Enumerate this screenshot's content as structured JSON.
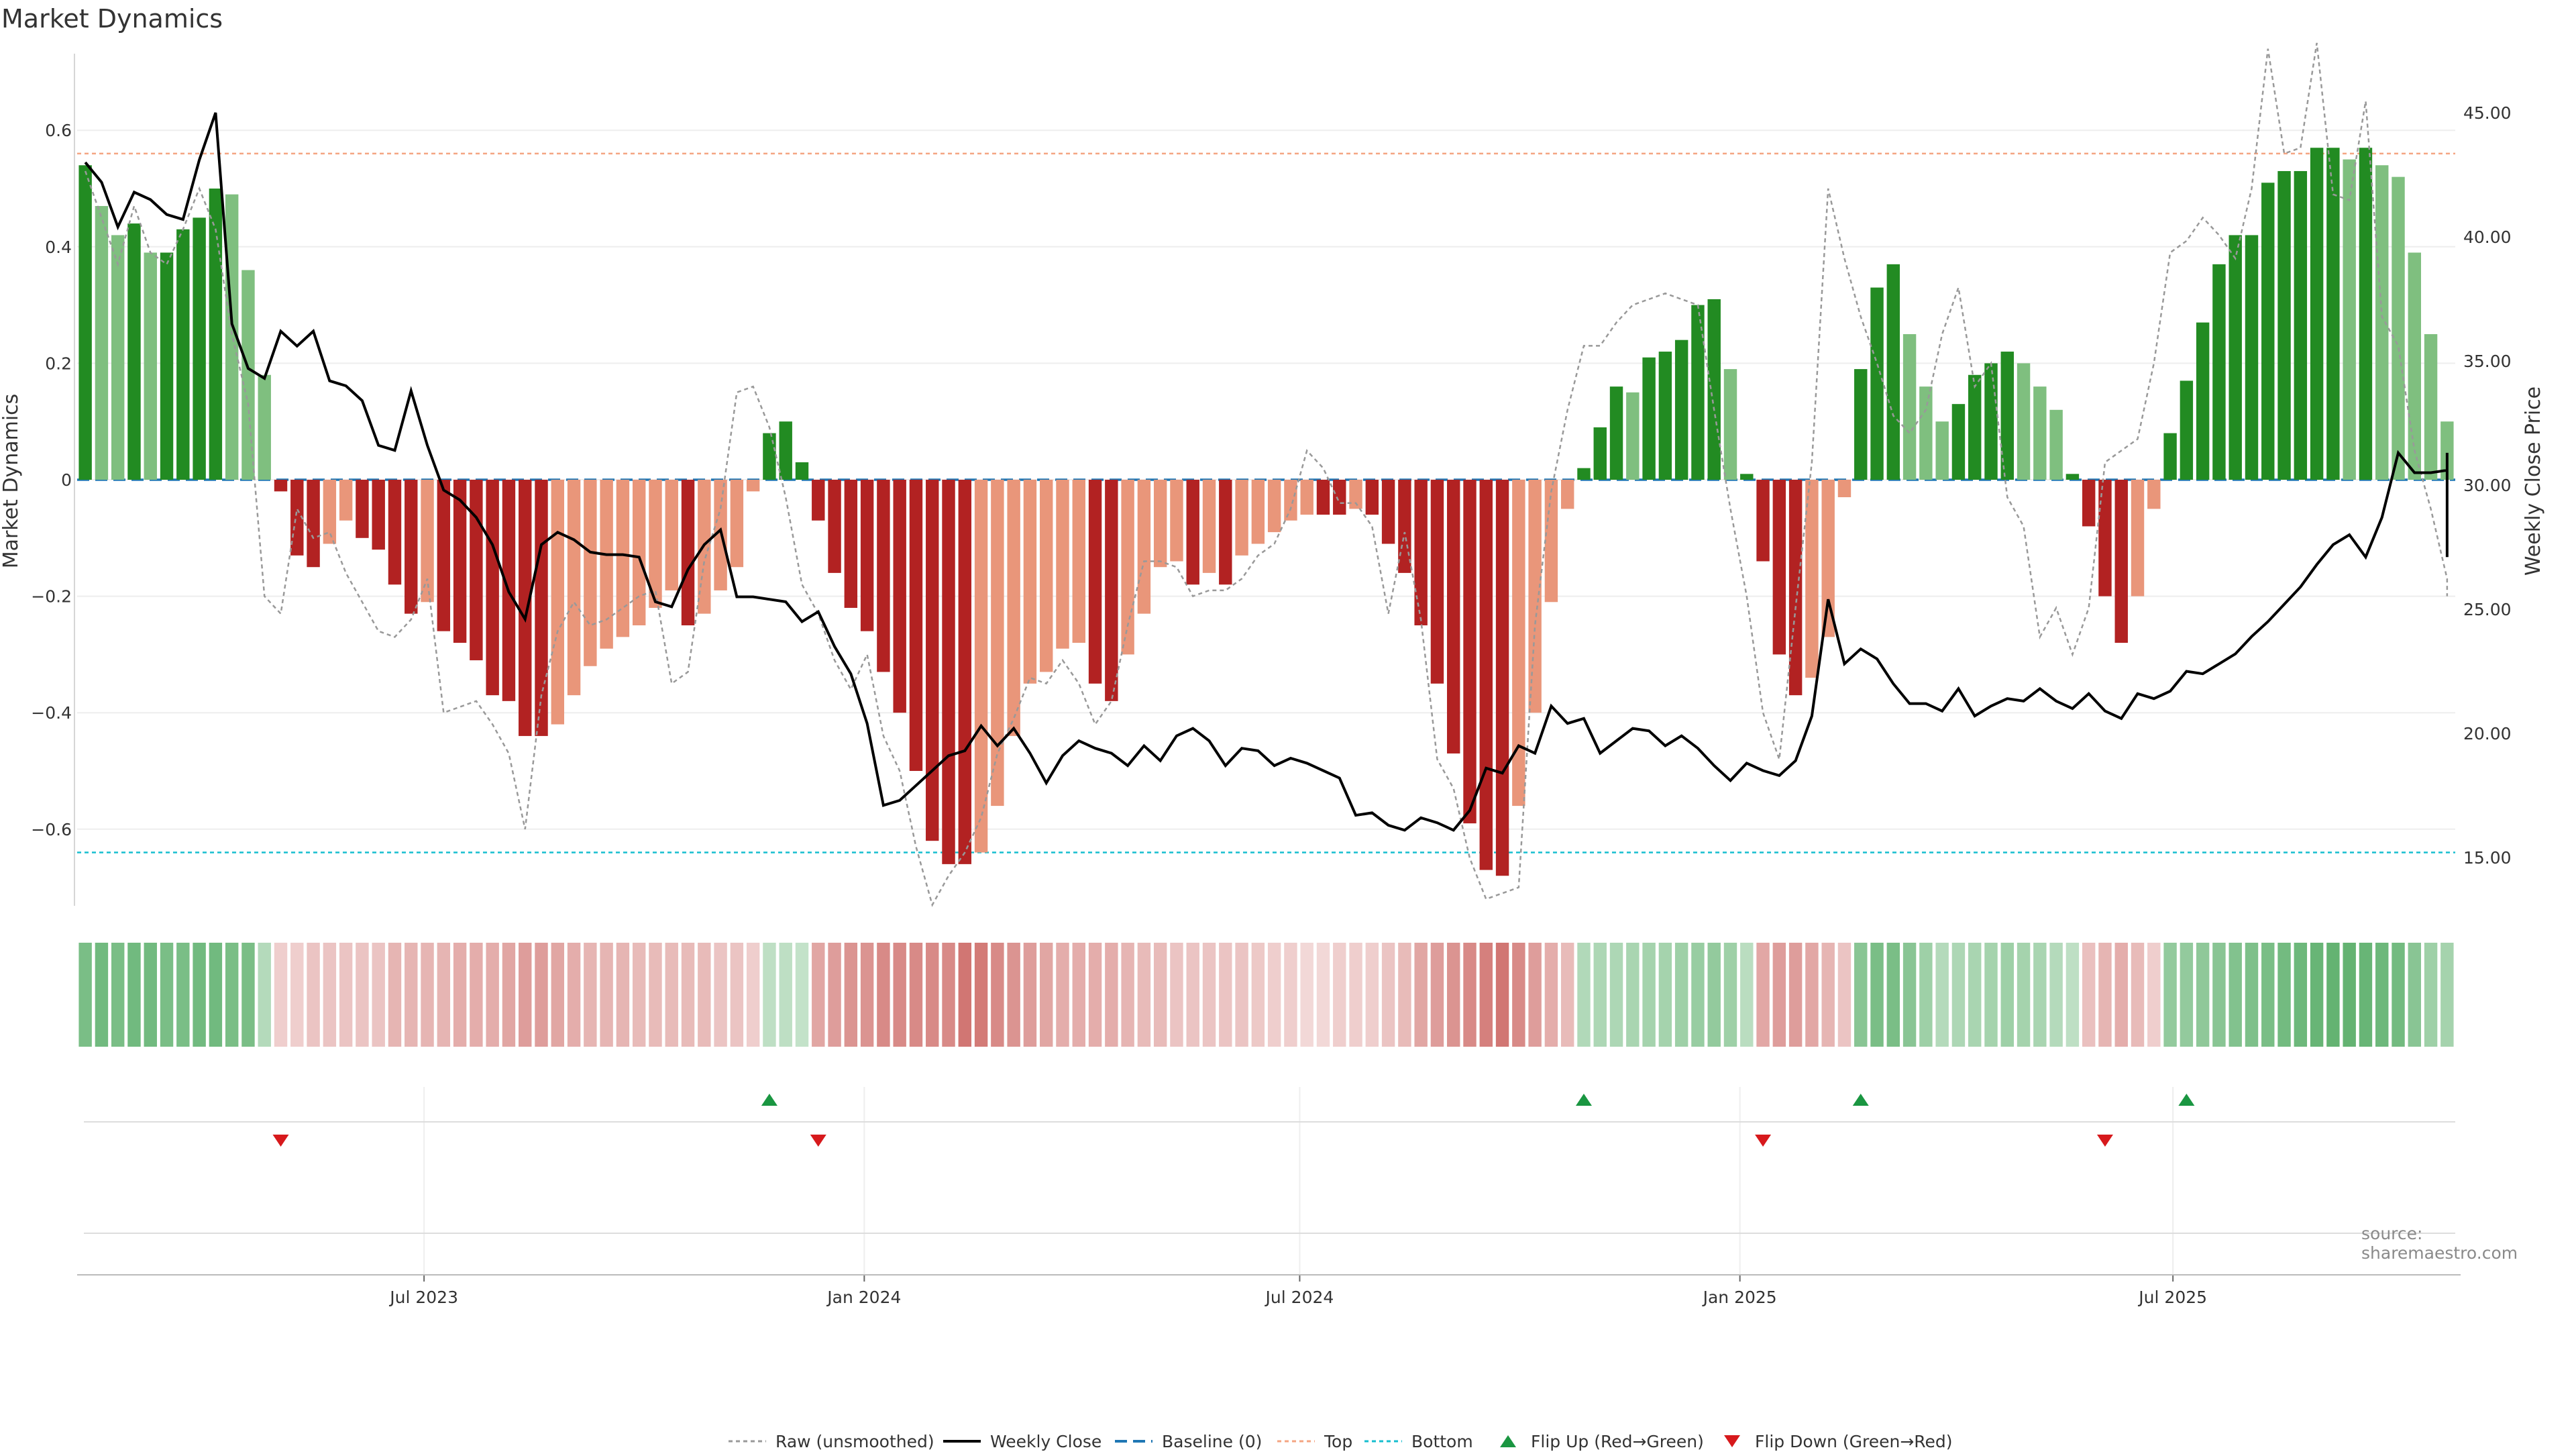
{
  "title": "Market Dynamics",
  "source": "source: sharemaestro.com",
  "colors": {
    "green_strong": "#228b22",
    "green_light": "#7fbf7f",
    "red_strong": "#b22222",
    "red_light": "#e9967a",
    "top_line": "#f4a582",
    "bottom_line": "#17becf",
    "baseline": "#1f77b4",
    "close_line": "#000000",
    "raw_line": "#999999",
    "flip_up": "#1a9641",
    "flip_down": "#d7191c"
  },
  "legend": [
    {
      "label": "Raw (unsmoothed)",
      "icon": "raw-line-icon"
    },
    {
      "label": "Weekly Close",
      "icon": "close-line-icon"
    },
    {
      "label": "Baseline (0)",
      "icon": "baseline-line-icon"
    },
    {
      "label": "Top",
      "icon": "top-line-icon"
    },
    {
      "label": "Bottom",
      "icon": "bottom-line-icon"
    },
    {
      "label": "Flip Up (Red→Green)",
      "icon": "triangle-up-icon"
    },
    {
      "label": "Flip Down (Green→Red)",
      "icon": "triangle-down-icon"
    }
  ],
  "chart_data": {
    "type": "bar",
    "title": "Market Dynamics",
    "ylabel": "Market Dynamics",
    "y2label": "Weekly Close Price",
    "ylim": [
      -0.75,
      0.75
    ],
    "y2lim": [
      12.5,
      47.8
    ],
    "yticks": [
      "0.6",
      "0.4",
      "0.2",
      "0",
      "−0.2",
      "−0.4",
      "−0.6"
    ],
    "yticks_values": [
      0.6,
      0.4,
      0.2,
      0,
      -0.2,
      -0.4,
      -0.6
    ],
    "y2ticks": [
      "45.00",
      "40.00",
      "35.00",
      "30.00",
      "25.00",
      "20.00",
      "15.00"
    ],
    "y2ticks_values": [
      45,
      40,
      35,
      30,
      25,
      20,
      15
    ],
    "xlim": [
      "2023-02-06",
      "2025-10-27"
    ],
    "xticks": [
      "Jul 2023",
      "Jan 2024",
      "Jul 2024",
      "Jan 2025",
      "Jul 2025"
    ],
    "xticks_dates": [
      "2023-07-01",
      "2024-01-01",
      "2024-07-01",
      "2025-01-01",
      "2025-07-01"
    ],
    "top": 0.56,
    "bottom": -0.64,
    "baseline": 0,
    "grid": true,
    "legend_position": "bottom",
    "series": [
      {
        "name": "Raw (unsmoothed)",
        "type": "line",
        "axis": "left"
      },
      {
        "name": "Weekly Close",
        "type": "line",
        "axis": "right"
      },
      {
        "name": "Baseline (0)",
        "type": "hline"
      },
      {
        "name": "Top",
        "type": "hline"
      },
      {
        "name": "Bottom",
        "type": "hline"
      },
      {
        "name": "Flip Up (Red→Green)",
        "type": "marker"
      },
      {
        "name": "Flip Down (Green→Red)",
        "type": "marker"
      }
    ],
    "bars": [
      0.54,
      0.47,
      0.42,
      0.44,
      0.39,
      0.39,
      0.43,
      0.45,
      0.5,
      0.49,
      0.36,
      0.18,
      -0.02,
      -0.13,
      -0.15,
      -0.11,
      -0.07,
      -0.1,
      -0.12,
      -0.18,
      -0.23,
      -0.21,
      -0.26,
      -0.28,
      -0.31,
      -0.37,
      -0.38,
      -0.44,
      -0.44,
      -0.42,
      -0.37,
      -0.32,
      -0.29,
      -0.27,
      -0.25,
      -0.22,
      -0.19,
      -0.25,
      -0.23,
      -0.19,
      -0.15,
      -0.02,
      0.08,
      0.1,
      0.03,
      -0.07,
      -0.16,
      -0.22,
      -0.26,
      -0.33,
      -0.4,
      -0.5,
      -0.62,
      -0.66,
      -0.66,
      -0.64,
      -0.56,
      -0.44,
      -0.35,
      -0.33,
      -0.29,
      -0.28,
      -0.35,
      -0.38,
      -0.3,
      -0.23,
      -0.15,
      -0.14,
      -0.18,
      -0.16,
      -0.18,
      -0.13,
      -0.11,
      -0.09,
      -0.07,
      -0.06,
      -0.06,
      -0.06,
      -0.05,
      -0.06,
      -0.11,
      -0.16,
      -0.25,
      -0.35,
      -0.47,
      -0.59,
      -0.67,
      -0.68,
      -0.56,
      -0.4,
      -0.21,
      -0.05,
      0.02,
      0.09,
      0.16,
      0.15,
      0.21,
      0.22,
      0.24,
      0.3,
      0.31,
      0.19,
      0.01,
      -0.14,
      -0.3,
      -0.37,
      -0.34,
      -0.27,
      -0.03,
      0.19,
      0.33,
      0.37,
      0.25,
      0.16,
      0.1,
      0.13,
      0.18,
      0.2,
      0.22,
      0.2,
      0.16,
      0.12,
      0.01,
      -0.08,
      -0.2,
      -0.28,
      -0.2,
      -0.05,
      0.08,
      0.17,
      0.27,
      0.37,
      0.42,
      0.42,
      0.51,
      0.53,
      0.53,
      0.57,
      0.57,
      0.55,
      0.57,
      0.54,
      0.52,
      0.39,
      0.25,
      0.1
    ],
    "raw": [
      0.53,
      0.45,
      0.37,
      0.47,
      0.39,
      0.37,
      0.43,
      0.5,
      0.43,
      0.25,
      0.13,
      -0.2,
      -0.23,
      -0.05,
      -0.1,
      -0.09,
      -0.16,
      -0.21,
      -0.26,
      -0.27,
      -0.24,
      -0.17,
      -0.4,
      -0.39,
      -0.38,
      -0.42,
      -0.47,
      -0.6,
      -0.37,
      -0.26,
      -0.21,
      -0.25,
      -0.24,
      -0.22,
      -0.2,
      -0.19,
      -0.35,
      -0.33,
      -0.14,
      -0.05,
      0.15,
      0.16,
      0.09,
      -0.03,
      -0.18,
      -0.23,
      -0.31,
      -0.36,
      -0.3,
      -0.44,
      -0.5,
      -0.63,
      -0.73,
      -0.68,
      -0.64,
      -0.58,
      -0.47,
      -0.41,
      -0.34,
      -0.35,
      -0.31,
      -0.35,
      -0.42,
      -0.38,
      -0.25,
      -0.14,
      -0.14,
      -0.15,
      -0.2,
      -0.19,
      -0.19,
      -0.17,
      -0.13,
      -0.11,
      -0.05,
      0.05,
      0.02,
      -0.04,
      -0.04,
      -0.08,
      -0.23,
      -0.09,
      -0.24,
      -0.48,
      -0.53,
      -0.65,
      -0.72,
      -0.71,
      -0.7,
      -0.25,
      -0.02,
      0.12,
      0.23,
      0.23,
      0.27,
      0.3,
      0.31,
      0.32,
      0.31,
      0.3,
      0.12,
      -0.05,
      -0.2,
      -0.4,
      -0.48,
      -0.22,
      0.03,
      0.5,
      0.38,
      0.28,
      0.2,
      0.11,
      0.08,
      0.12,
      0.25,
      0.33,
      0.16,
      0.2,
      -0.03,
      -0.08,
      -0.27,
      -0.22,
      -0.3,
      -0.22,
      0.03,
      0.05,
      0.07,
      0.2,
      0.39,
      0.41,
      0.45,
      0.42,
      0.38,
      0.5,
      0.74,
      0.56,
      0.57,
      0.75,
      0.49,
      0.48,
      0.65,
      0.28,
      0.23,
      0.05,
      -0.05,
      -0.17,
      -0.2
    ],
    "close": [
      43,
      42.2,
      40.4,
      41.8,
      41.5,
      40.9,
      40.7,
      43.1,
      45,
      36.5,
      34.7,
      34.3,
      36.2,
      35.6,
      36.2,
      34.2,
      34,
      33.4,
      31.6,
      31.4,
      33.8,
      31.6,
      29.8,
      29.4,
      28.7,
      27.6,
      25.7,
      24.6,
      27.6,
      28.1,
      27.8,
      27.3,
      27.2,
      27.2,
      27.1,
      25.3,
      25.1,
      26.6,
      27.6,
      28.2,
      25.5,
      25.5,
      25.4,
      25.3,
      24.5,
      24.9,
      23.5,
      22.4,
      20.4,
      17.1,
      17.3,
      17.9,
      18.5,
      19.1,
      19.3,
      20.3,
      19.5,
      20.2,
      19.2,
      18,
      19.1,
      19.7,
      19.4,
      19.2,
      18.7,
      19.5,
      18.9,
      19.9,
      20.2,
      19.7,
      18.7,
      19.4,
      19.3,
      18.7,
      19,
      18.8,
      18.5,
      18.2,
      16.7,
      16.8,
      16.3,
      16.1,
      16.6,
      16.4,
      16.1,
      16.9,
      18.6,
      18.4,
      19.5,
      19.2,
      21.1,
      20.4,
      20.6,
      19.2,
      19.7,
      20.2,
      20.1,
      19.5,
      19.9,
      19.4,
      18.7,
      18.1,
      18.8,
      18.5,
      18.3,
      18.9,
      20.7,
      25.4,
      22.8,
      23.4,
      23,
      22,
      21.2,
      21.2,
      20.9,
      21.8,
      20.7,
      21.1,
      21.4,
      21.3,
      21.8,
      21.3,
      21,
      21.6,
      20.9,
      20.6,
      21.6,
      21.4,
      21.7,
      22.5,
      22.4,
      22.8,
      23.2,
      23.9,
      24.5,
      25.2,
      25.9,
      26.8,
      27.6,
      28,
      27.1,
      28.7,
      31.3,
      30.5,
      30.5,
      30.6,
      31.3,
      28.7,
      28.5,
      27.1
    ],
    "heat": [
      0.62,
      0.66,
      0.62,
      0.66,
      0.66,
      0.62,
      0.62,
      0.66,
      0.66,
      0.62,
      0.62,
      0.35,
      0.25,
      0.25,
      0.3,
      0.3,
      0.3,
      0.3,
      0.3,
      0.38,
      0.38,
      0.38,
      0.38,
      0.42,
      0.42,
      0.42,
      0.46,
      0.5,
      0.5,
      0.46,
      0.42,
      0.38,
      0.38,
      0.38,
      0.35,
      0.35,
      0.35,
      0.35,
      0.35,
      0.3,
      0.3,
      0.25,
      0.3,
      0.3,
      0.28,
      0.46,
      0.5,
      0.55,
      0.55,
      0.6,
      0.6,
      0.6,
      0.6,
      0.6,
      0.7,
      0.68,
      0.6,
      0.55,
      0.5,
      0.46,
      0.42,
      0.42,
      0.42,
      0.42,
      0.38,
      0.35,
      0.35,
      0.3,
      0.3,
      0.3,
      0.3,
      0.3,
      0.28,
      0.25,
      0.25,
      0.2,
      0.2,
      0.25,
      0.25,
      0.25,
      0.3,
      0.35,
      0.46,
      0.5,
      0.55,
      0.6,
      0.65,
      0.7,
      0.6,
      0.5,
      0.42,
      0.35,
      0.36,
      0.38,
      0.38,
      0.4,
      0.42,
      0.42,
      0.45,
      0.48,
      0.5,
      0.45,
      0.32,
      0.45,
      0.5,
      0.5,
      0.45,
      0.38,
      0.3,
      0.55,
      0.62,
      0.62,
      0.55,
      0.45,
      0.35,
      0.38,
      0.4,
      0.42,
      0.45,
      0.42,
      0.4,
      0.35,
      0.3,
      0.32,
      0.38,
      0.42,
      0.35,
      0.25,
      0.5,
      0.5,
      0.52,
      0.55,
      0.58,
      0.6,
      0.62,
      0.65,
      0.68,
      0.7,
      0.72,
      0.72,
      0.7,
      0.68,
      0.65,
      0.55,
      0.45,
      0.42
    ],
    "flip_up_index": [
      42,
      92,
      109,
      129
    ],
    "flip_down_index": [
      12,
      45,
      103,
      124
    ]
  }
}
